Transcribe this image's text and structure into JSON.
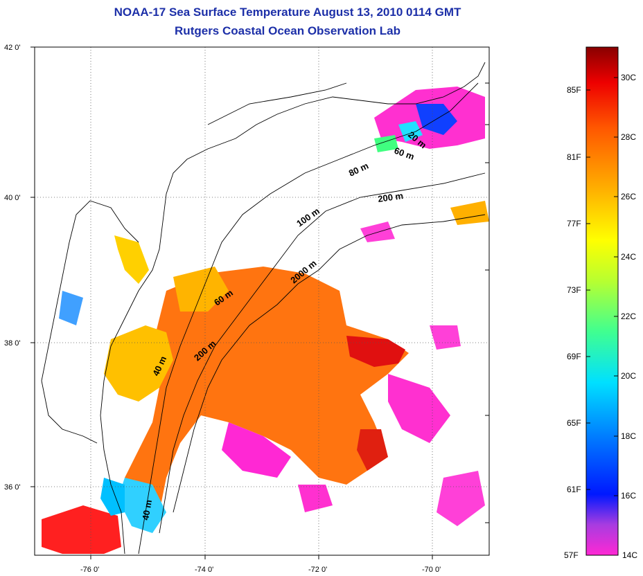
{
  "title_line1": "NOAA-17 Sea Surface Temperature August 13, 2010 0114 GMT",
  "title_line2": "Rutgers Coastal Ocean Observation Lab",
  "lat_labels": [
    {
      "text": "42 0'",
      "lat": 42
    },
    {
      "text": "40 0'",
      "lat": 40
    },
    {
      "text": "38 0'",
      "lat": 38
    },
    {
      "text": "36 0'",
      "lat": 36
    }
  ],
  "lon_labels": [
    {
      "text": "-76 0'",
      "lon": -76
    },
    {
      "text": "-74 0'",
      "lon": -74
    },
    {
      "text": "-72 0'",
      "lon": -72
    },
    {
      "text": "-70 0'",
      "lon": -70
    }
  ],
  "isobath_labels": [
    "20 m",
    "60 m",
    "80 m",
    "200 m",
    "100 m",
    "2000 m",
    "60 m",
    "200 m",
    "40 m",
    "40 m"
  ],
  "colorbar": {
    "fahrenheit": [
      "85F",
      "81F",
      "77F",
      "73F",
      "69F",
      "65F",
      "61F",
      "57F"
    ],
    "celsius": [
      "30C",
      "28C",
      "26C",
      "24C",
      "22C",
      "20C",
      "18C",
      "16C",
      "14C"
    ],
    "range_c": [
      14,
      31
    ],
    "range_f": [
      57,
      87.8
    ]
  },
  "colors": {
    "title": "#1c2fa8",
    "warm": "#ff6a00",
    "hot": "#d40000",
    "yellow": "#ffd800",
    "green": "#40ff80",
    "cyan": "#00c8ff",
    "blue": "#1030ff",
    "magenta": "#ff20c8"
  }
}
